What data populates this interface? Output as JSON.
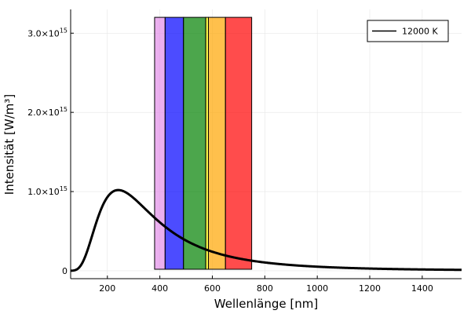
{
  "chart_data": {
    "type": "line",
    "xlabel": "Wellenlänge [nm]",
    "ylabel": "Intensität [W/m³]",
    "xlim": [
      60,
      1550
    ],
    "ylim": [
      -100000000000000.0,
      3300000000000000.0
    ],
    "grid": true,
    "legend_position": "top-right",
    "x_ticks": [
      {
        "value": 200,
        "label": "200"
      },
      {
        "value": 400,
        "label": "400"
      },
      {
        "value": 600,
        "label": "600"
      },
      {
        "value": 800,
        "label": "800"
      },
      {
        "value": 1000,
        "label": "1000"
      },
      {
        "value": 1200,
        "label": "1200"
      },
      {
        "value": 1400,
        "label": "1400"
      }
    ],
    "y_ticks": [
      {
        "value": 0,
        "mantissa": "0",
        "exponent": ""
      },
      {
        "value": 1000000000000000.0,
        "mantissa": "1.0×10",
        "exponent": "15"
      },
      {
        "value": 2000000000000000.0,
        "mantissa": "2.0×10",
        "exponent": "15"
      },
      {
        "value": 3000000000000000.0,
        "mantissa": "3.0×10",
        "exponent": "15"
      }
    ],
    "series": [
      {
        "name": "12000 K",
        "color": "#000000",
        "temperature_K": 12000,
        "x_start": 60,
        "x_end": 1550
      }
    ],
    "bands": [
      {
        "x0": 380,
        "x1": 420,
        "y1": 3200000000000000.0,
        "color": "#e28ee8"
      },
      {
        "x0": 420,
        "x1": 490,
        "y1": 3200000000000000.0,
        "color": "#0000ff"
      },
      {
        "x0": 490,
        "x1": 575,
        "y1": 3200000000000000.0,
        "color": "#008000"
      },
      {
        "x0": 575,
        "x1": 585,
        "y1": 3200000000000000.0,
        "color": "#ffff00"
      },
      {
        "x0": 585,
        "x1": 650,
        "y1": 3200000000000000.0,
        "color": "#ffa500"
      },
      {
        "x0": 650,
        "x1": 750,
        "y1": 3200000000000000.0,
        "color": "#ff0000"
      }
    ]
  }
}
